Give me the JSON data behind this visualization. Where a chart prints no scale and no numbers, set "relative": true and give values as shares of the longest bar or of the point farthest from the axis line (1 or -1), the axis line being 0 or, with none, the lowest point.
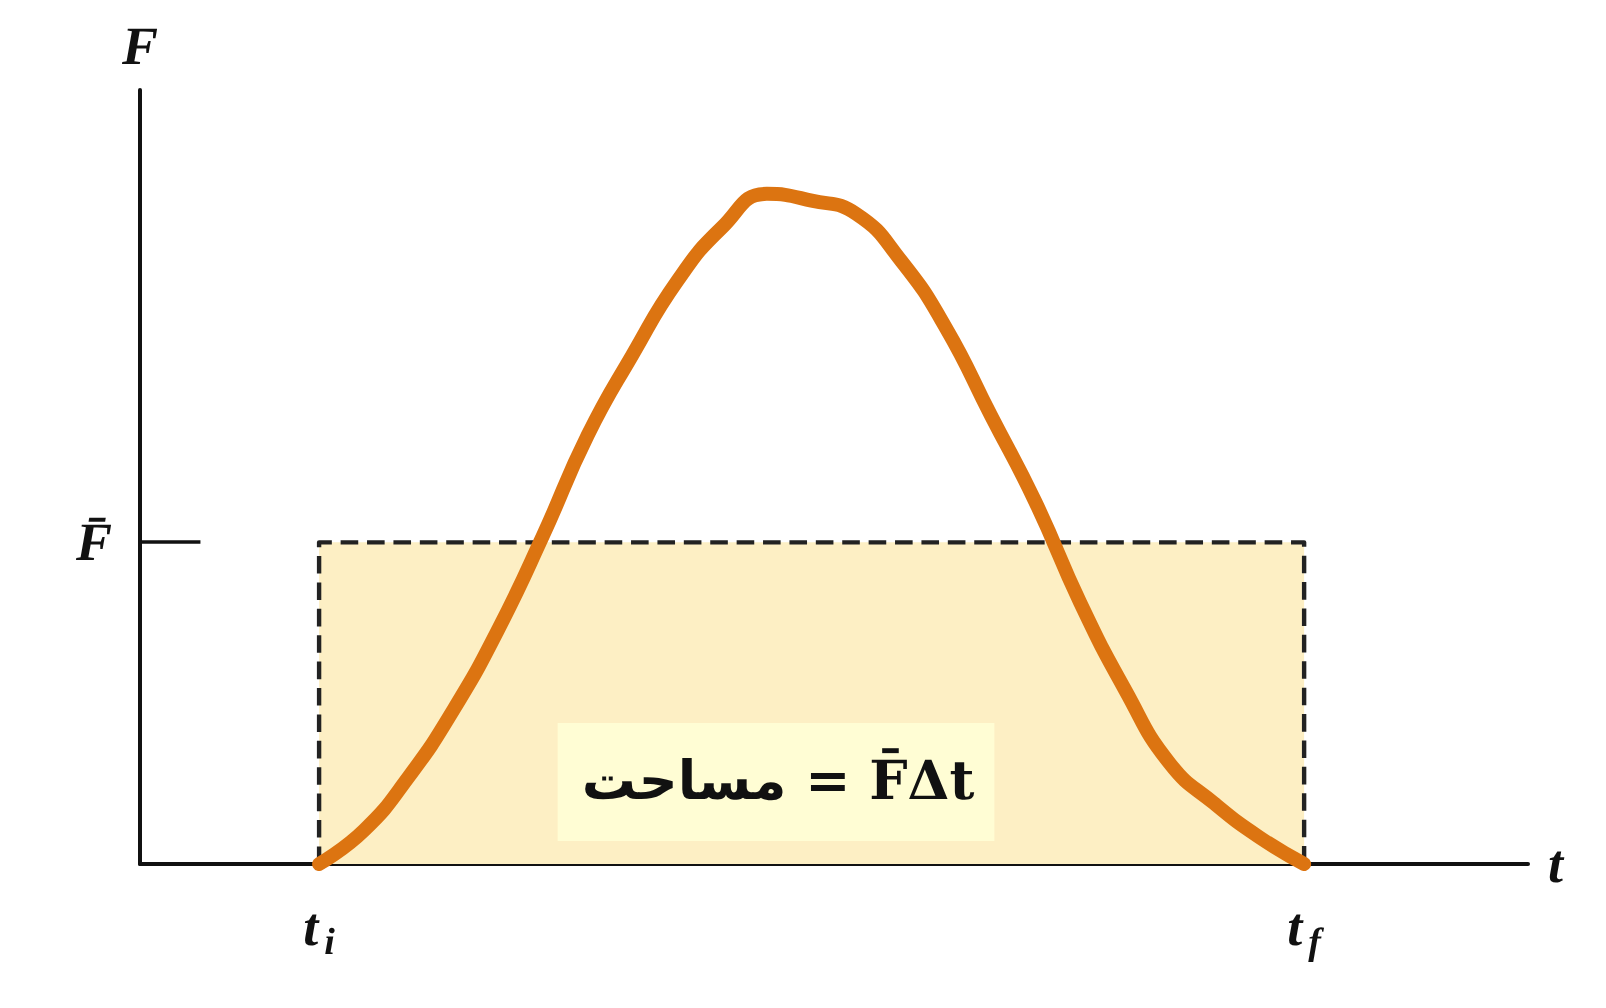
{
  "chart_data": {
    "type": "line",
    "relative": true,
    "xlabel": "t",
    "ylabel": "F",
    "categories": [
      null,
      null,
      null,
      null,
      "t$_{i}$",
      null,
      null,
      null,
      null,
      null,
      null,
      null,
      null,
      null,
      null,
      null,
      null,
      null,
      null,
      null,
      null,
      null,
      null,
      null,
      null,
      null,
      "t$_{f}$",
      null,
      null,
      null,
      null,
      null
    ],
    "series": [
      {
        "type": "area",
        "color": "#fdefc4",
        "line_style": "dashed",
        "values": [
          null,
          null,
          null,
          null,
          0.48,
          0.48,
          0.48,
          0.48,
          0.48,
          0.48,
          0.48,
          0.48,
          0.48,
          0.48,
          0.48,
          0.48,
          0.48,
          0.48,
          0.48,
          0.48,
          0.48,
          0.48,
          0.48,
          0.48,
          0.48,
          0.48,
          0.48,
          null,
          null,
          null,
          null,
          null
        ]
      },
      {
        "color": "#dc7411",
        "values": [
          null,
          null,
          null,
          null,
          0,
          0.05,
          0.13,
          0.23,
          0.35,
          0.49,
          0.64,
          0.76,
          0.87,
          0.95,
          1,
          0.99,
          0.97,
          0.9,
          0.8,
          0.67,
          0.54,
          0.39,
          0.26,
          0.15,
          0.09,
          0.04,
          0,
          null,
          null,
          null,
          null,
          null
        ]
      }
    ],
    "ref_lines": [
      {
        "axis": "y",
        "value": 0.48,
        "label": "F̄"
      }
    ],
    "annotations": [
      "مساحت = F̄Δt"
    ],
    "marker": "none",
    "line_style": "solid"
  }
}
